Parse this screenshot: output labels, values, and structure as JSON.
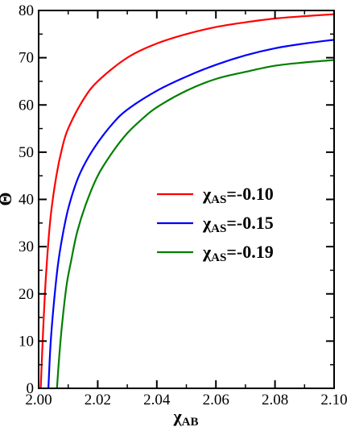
{
  "chart_data": {
    "type": "line",
    "xlabel": "χ",
    "xlabel_sub": "AB",
    "ylabel": "Θ",
    "xlim": [
      2.0,
      2.1
    ],
    "ylim": [
      0,
      80
    ],
    "xticks": [
      "2.00",
      "2.02",
      "2.04",
      "2.06",
      "2.08",
      "2.10"
    ],
    "yticks": [
      "0",
      "10",
      "20",
      "30",
      "40",
      "50",
      "60",
      "70",
      "80"
    ],
    "legend_position": "center-right",
    "series": [
      {
        "name": "χ",
        "name_sub": "AS",
        "name_value": "=-0.10",
        "color": "#ff0000",
        "x": [
          2.0007,
          2.0015,
          2.0025,
          2.004,
          2.006,
          2.008,
          2.01,
          2.015,
          2.02,
          2.03,
          2.04,
          2.05,
          2.06,
          2.07,
          2.08,
          2.09,
          2.1
        ],
        "y": [
          0,
          12,
          24,
          36,
          45,
          51,
          55,
          61,
          65,
          70,
          73,
          75,
          76.5,
          77.5,
          78.3,
          78.8,
          79.2
        ]
      },
      {
        "name": "χ",
        "name_sub": "AS",
        "name_value": "=-0.15",
        "color": "#0000ff",
        "x": [
          2.0033,
          2.004,
          2.005,
          2.0065,
          2.008,
          2.01,
          2.013,
          2.016,
          2.02,
          2.025,
          2.03,
          2.04,
          2.05,
          2.06,
          2.07,
          2.08,
          2.09,
          2.1
        ],
        "y": [
          0,
          9,
          17,
          26,
          32,
          38,
          44,
          48,
          52,
          56,
          59,
          63,
          66,
          68.5,
          70.5,
          72,
          73,
          73.8
        ]
      },
      {
        "name": "χ",
        "name_sub": "AS",
        "name_value": "=-0.19",
        "color": "#008000",
        "x": [
          2.0062,
          2.007,
          2.008,
          2.0095,
          2.011,
          2.013,
          2.016,
          2.02,
          2.025,
          2.03,
          2.035,
          2.04,
          2.05,
          2.06,
          2.07,
          2.08,
          2.09,
          2.1
        ],
        "y": [
          0,
          7,
          14,
          22,
          27,
          33,
          39,
          45,
          50,
          54,
          57,
          59.5,
          63,
          65.5,
          67,
          68.3,
          69,
          69.5
        ]
      }
    ]
  }
}
